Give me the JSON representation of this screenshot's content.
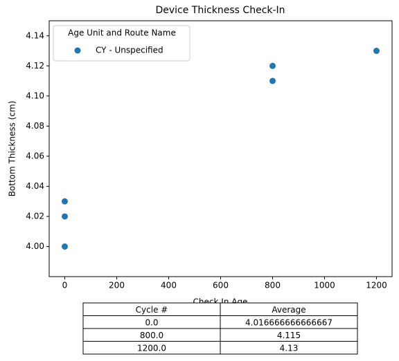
{
  "chart_data": {
    "type": "scatter",
    "title": "Device Thickness Check-In",
    "xlabel": "Check In Age",
    "ylabel": "Bottom Thickness (cm)",
    "series": [
      {
        "name": "CY - Unspecified",
        "color": "#1f77b4",
        "x": [
          0,
          0,
          0,
          800,
          800,
          1200
        ],
        "values": [
          4.0,
          4.02,
          4.03,
          4.12,
          4.11,
          4.13
        ]
      }
    ],
    "legend_title": "Age Unit and Route Name",
    "legend": "upper left",
    "xlim": [
      -60,
      1260
    ],
    "xticks": [
      0,
      200,
      400,
      600,
      800,
      1000,
      1200
    ],
    "ylim": [
      3.98,
      4.15
    ],
    "yticks": [
      {
        "value": 4.0,
        "label": "4.00"
      },
      {
        "value": 4.02,
        "label": "4.02"
      },
      {
        "value": 4.04,
        "label": "4.04"
      },
      {
        "value": 4.06,
        "label": "4.06"
      },
      {
        "value": 4.08,
        "label": "4.08"
      },
      {
        "value": 4.1,
        "label": "4.10"
      },
      {
        "value": 4.12,
        "label": "4.12"
      },
      {
        "value": 4.14,
        "label": "4.14"
      }
    ],
    "grid": false
  },
  "table": {
    "columns": [
      "Cycle #",
      "Average"
    ],
    "rows": [
      [
        "0.0",
        "4.016666666666667"
      ],
      [
        "800.0",
        "4.115"
      ],
      [
        "1200.0",
        "4.13"
      ]
    ]
  }
}
